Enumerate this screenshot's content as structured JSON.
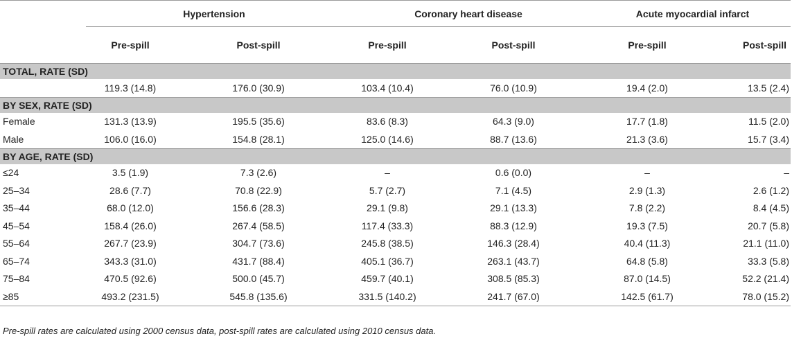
{
  "groups": [
    "Hypertension",
    "Coronary heart disease",
    "Acute myocardial infarct"
  ],
  "subheaders": [
    "Pre-spill",
    "Post-spill",
    "Pre-spill",
    "Post-spill",
    "Pre-spill",
    "Post-spill"
  ],
  "sections": {
    "total": "TOTAL, RATE (SD)",
    "sex": "BY SEX, RATE (SD)",
    "age": "BY AGE, RATE (SD)"
  },
  "rows": {
    "total": {
      "label": "",
      "values": [
        "119.3 (14.8)",
        "176.0 (30.9)",
        "103.4 (10.4)",
        "76.0 (10.9)",
        "19.4 (2.0)",
        "13.5 (2.4)"
      ]
    },
    "female": {
      "label": "Female",
      "values": [
        "131.3 (13.9)",
        "195.5 (35.6)",
        "83.6 (8.3)",
        "64.3 (9.0)",
        "17.7 (1.8)",
        "11.5 (2.0)"
      ]
    },
    "male": {
      "label": "Male",
      "values": [
        "106.0 (16.0)",
        "154.8 (28.1)",
        "125.0 (14.6)",
        "88.7 (13.6)",
        "21.3 (3.6)",
        "15.7 (3.4)"
      ]
    },
    "age": [
      {
        "label": "≤24",
        "values": [
          "3.5 (1.9)",
          "7.3 (2.6)",
          "–",
          "0.6 (0.0)",
          "–",
          "–"
        ]
      },
      {
        "label": "25–34",
        "values": [
          "28.6 (7.7)",
          "70.8 (22.9)",
          "5.7 (2.7)",
          "7.1 (4.5)",
          "2.9 (1.3)",
          "2.6 (1.2)"
        ]
      },
      {
        "label": "35–44",
        "values": [
          "68.0 (12.0)",
          "156.6 (28.3)",
          "29.1 (9.8)",
          "29.1 (13.3)",
          "7.8 (2.2)",
          "8.4 (4.5)"
        ]
      },
      {
        "label": "45–54",
        "values": [
          "158.4 (26.0)",
          "267.4 (58.5)",
          "117.4 (33.3)",
          "88.3 (12.9)",
          "19.3 (7.5)",
          "20.7 (5.8)"
        ]
      },
      {
        "label": "55–64",
        "values": [
          "267.7 (23.9)",
          "304.7 (73.6)",
          "245.8 (38.5)",
          "146.3 (28.4)",
          "40.4 (11.3)",
          "21.1 (11.0)"
        ]
      },
      {
        "label": "65–74",
        "values": [
          "343.3 (31.0)",
          "431.7 (88.4)",
          "405.1 (36.7)",
          "263.1 (43.7)",
          "64.8 (5.8)",
          "33.3 (5.8)"
        ]
      },
      {
        "label": "75–84",
        "values": [
          "470.5 (92.6)",
          "500.0 (45.7)",
          "459.7 (40.1)",
          "308.5 (85.3)",
          "87.0 (14.5)",
          "52.2 (21.4)"
        ]
      },
      {
        "label": "≥85",
        "values": [
          "493.2 (231.5)",
          "545.8 (135.6)",
          "331.5 (140.2)",
          "241.7 (67.0)",
          "142.5 (61.7)",
          "78.0 (15.2)"
        ]
      }
    ]
  },
  "footnote": "Pre-spill rates are calculated using 2000 census data, post-spill rates are calculated using 2010 census data."
}
